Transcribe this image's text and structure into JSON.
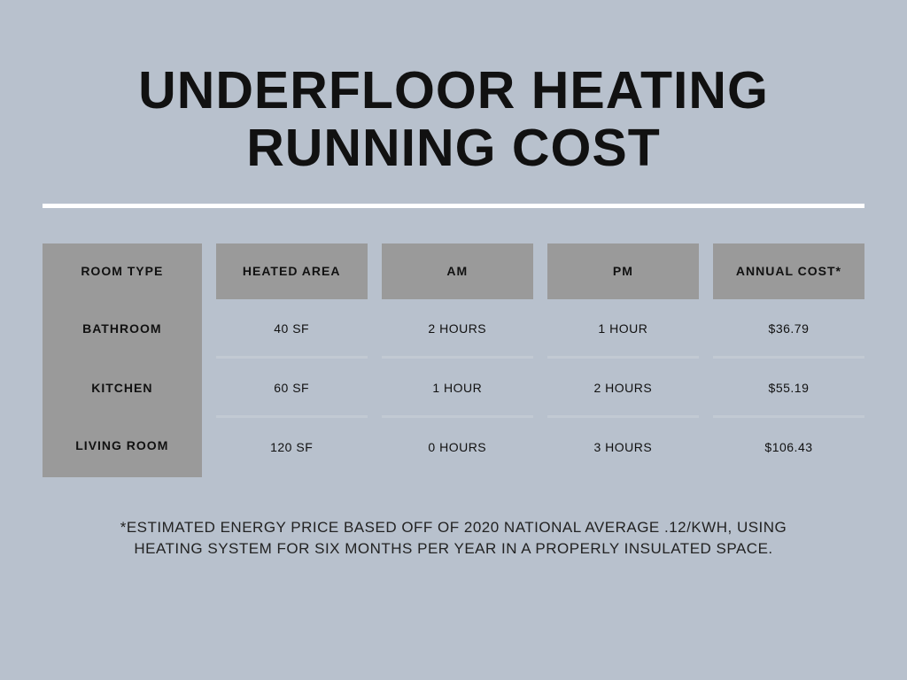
{
  "title_line1": "UNDERFLOOR HEATING",
  "title_line2": "RUNNING COST",
  "columns": {
    "room": "ROOM TYPE",
    "area": "HEATED AREA",
    "am": "AM",
    "pm": "PM",
    "cost": "ANNUAL COST*"
  },
  "rows": [
    {
      "room": "BATHROOM",
      "area": "40 SF",
      "am": "2 HOURS",
      "pm": "1 HOUR",
      "cost": "$36.79"
    },
    {
      "room": "KITCHEN",
      "area": "60 SF",
      "am": "1 HOUR",
      "pm": "2 HOURS",
      "cost": "$55.19"
    },
    {
      "room": "LIVING ROOM",
      "area": "120 SF",
      "am": "0 HOURS",
      "pm": "3 HOURS",
      "cost": "$106.43"
    }
  ],
  "footnote": "*ESTIMATED ENERGY PRICE BASED OFF OF 2020 NATIONAL AVERAGE .12/KWH, USING HEATING SYSTEM FOR SIX MONTHS PER YEAR IN A PROPERLY INSULATED SPACE.",
  "colors": {
    "page_bg": "#b8c1cd",
    "cell_header_bg": "#9a9a9a",
    "room_col_bg": "#9a9a9a",
    "divider": "#ffffff",
    "row_sep": "#c2cad3",
    "text": "#111111"
  }
}
